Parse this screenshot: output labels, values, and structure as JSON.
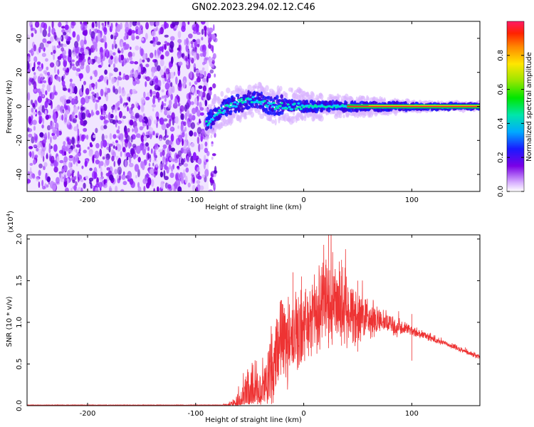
{
  "title": "GN02.2023.294.02.12.C46",
  "chart_data": [
    {
      "type": "heatmap",
      "title": "GN02.2023.294.02.12.C46",
      "xlabel": "Height of straight line (km)",
      "ylabel": "Frequency (Hz)",
      "xlim": [
        -256,
        163
      ],
      "ylim": [
        -50,
        50
      ],
      "xticks": [
        -200,
        -100,
        0,
        100
      ],
      "yticks": [
        -40,
        -20,
        0,
        20,
        40
      ],
      "colorbar": {
        "label": "Normalized spectral amplitude",
        "range": [
          0.0,
          1.0
        ],
        "ticks": [
          0.0,
          0.2,
          0.4,
          0.6,
          0.8
        ],
        "tick_labels": [
          "0.0",
          "0.2",
          "0.4",
          "0.6",
          "0.8"
        ]
      },
      "noise_region": {
        "x_start": -256,
        "x_end": -88
      },
      "ridge": {
        "x": [
          -90,
          -80,
          -70,
          -60,
          -50,
          -40,
          -30,
          -20,
          -10,
          0,
          20,
          40,
          60,
          80,
          100,
          120,
          140,
          163
        ],
        "y": [
          -10,
          -4,
          0,
          2,
          4,
          3,
          0,
          1,
          0,
          0,
          0,
          0,
          0,
          0,
          0,
          0,
          0,
          0
        ]
      }
    },
    {
      "type": "line",
      "title": "",
      "xlabel": "Height of straight line (km)",
      "ylabel": "SNR (10 * v/v)",
      "multiplier": "(x10⁴)",
      "multiplier_base": "(x10",
      "multiplier_exp": "4",
      "multiplier_close": ")",
      "xlim": [
        -256,
        163
      ],
      "ylim": [
        0,
        2.05
      ],
      "xticks": [
        -200,
        -100,
        0,
        100
      ],
      "yticks": [
        0.0,
        0.5,
        1.0,
        1.5,
        2.0
      ],
      "ytick_labels": [
        "0.0",
        "0.5",
        "1.0",
        "1.5",
        "2.0"
      ],
      "series": [
        {
          "name": "SNR",
          "color": "#ee3333",
          "x": [
            -256,
            -200,
            -150,
            -100,
            -70,
            -60,
            -55,
            -50,
            -45,
            -40,
            -35,
            -30,
            -25,
            -20,
            -15,
            -10,
            -5,
            0,
            5,
            10,
            15,
            20,
            25,
            30,
            35,
            40,
            45,
            50,
            55,
            60,
            65,
            70,
            75,
            80,
            85,
            90,
            95,
            100,
            110,
            120,
            130,
            140,
            150,
            163
          ],
          "values": [
            0.0,
            0.0,
            0.0,
            0.0,
            0.01,
            0.05,
            0.1,
            0.2,
            0.2,
            0.15,
            0.25,
            0.45,
            0.6,
            0.75,
            0.8,
            0.85,
            0.85,
            0.95,
            1.05,
            1.1,
            1.15,
            1.2,
            1.3,
            1.25,
            1.2,
            1.15,
            1.1,
            1.08,
            1.05,
            1.03,
            1.02,
            1.0,
            1.0,
            0.98,
            0.95,
            0.93,
            0.92,
            0.9,
            0.85,
            0.8,
            0.75,
            0.7,
            0.65,
            0.58
          ],
          "noise": [
            0,
            0,
            0,
            0,
            0.01,
            0.1,
            0.2,
            0.25,
            0.25,
            0.2,
            0.3,
            0.4,
            0.4,
            0.45,
            0.45,
            0.4,
            0.4,
            0.4,
            0.4,
            0.45,
            0.45,
            0.45,
            0.45,
            0.4,
            0.4,
            0.35,
            0.3,
            0.3,
            0.25,
            0.2,
            0.2,
            0.15,
            0.12,
            0.1,
            0.1,
            0.08,
            0.06,
            0.05,
            0.04,
            0.04,
            0.03,
            0.03,
            0.03,
            0.03
          ]
        }
      ]
    }
  ]
}
